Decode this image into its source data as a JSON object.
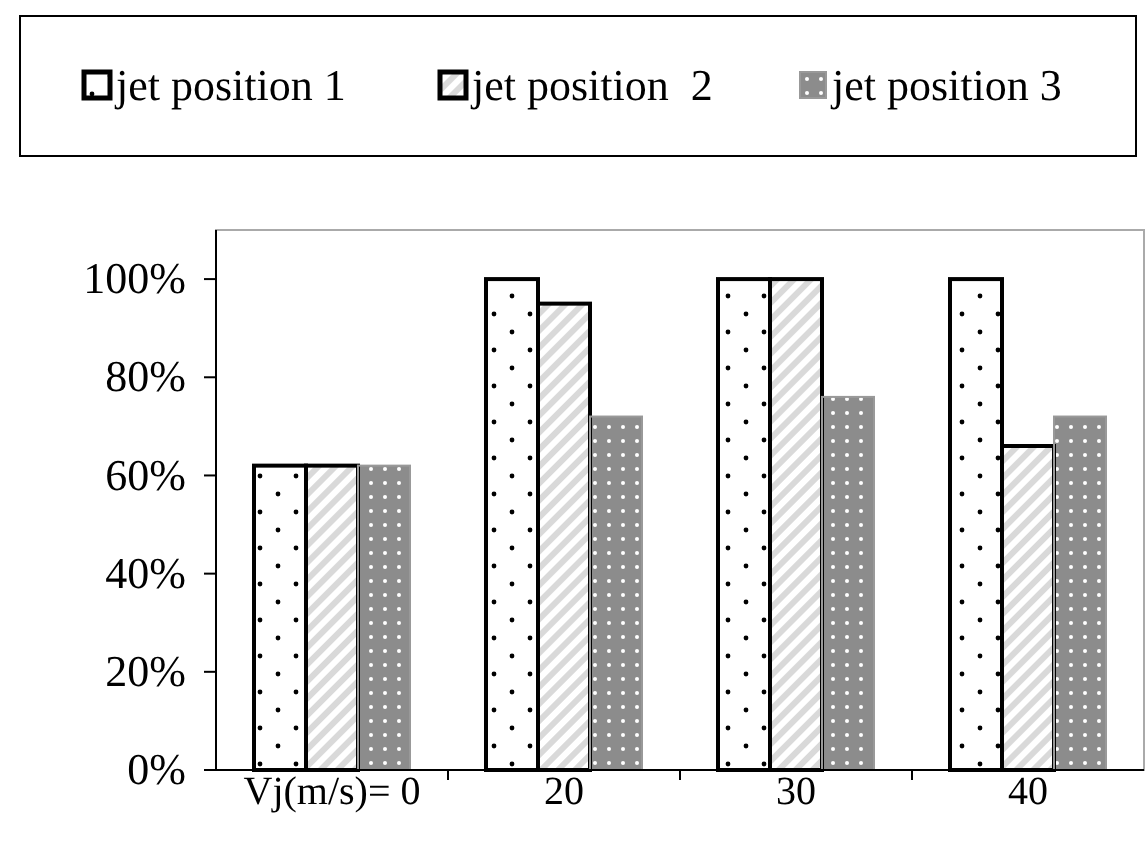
{
  "chart_data": {
    "type": "bar",
    "categories": [
      "Vj(m/s)= 0",
      "20",
      "30",
      "40"
    ],
    "series": [
      {
        "name": "jet position 1",
        "color": "#ffffff",
        "values": [
          62,
          100,
          100,
          100
        ]
      },
      {
        "name": "jet position  2",
        "color": "#d9d9d9",
        "values": [
          62,
          95,
          100,
          66
        ]
      },
      {
        "name": "jet position 3",
        "color": "#8c8c8c",
        "values": [
          62,
          72,
          76,
          72
        ]
      }
    ],
    "ylim": [
      0,
      110
    ],
    "yticks": [
      {
        "value": 0,
        "label": "0%"
      },
      {
        "value": 20,
        "label": "20%"
      },
      {
        "value": 40,
        "label": "40%"
      },
      {
        "value": 60,
        "label": "60%"
      },
      {
        "value": 80,
        "label": "80%"
      },
      {
        "value": 100,
        "label": "100%"
      }
    ],
    "grid": false,
    "legend": "top"
  }
}
